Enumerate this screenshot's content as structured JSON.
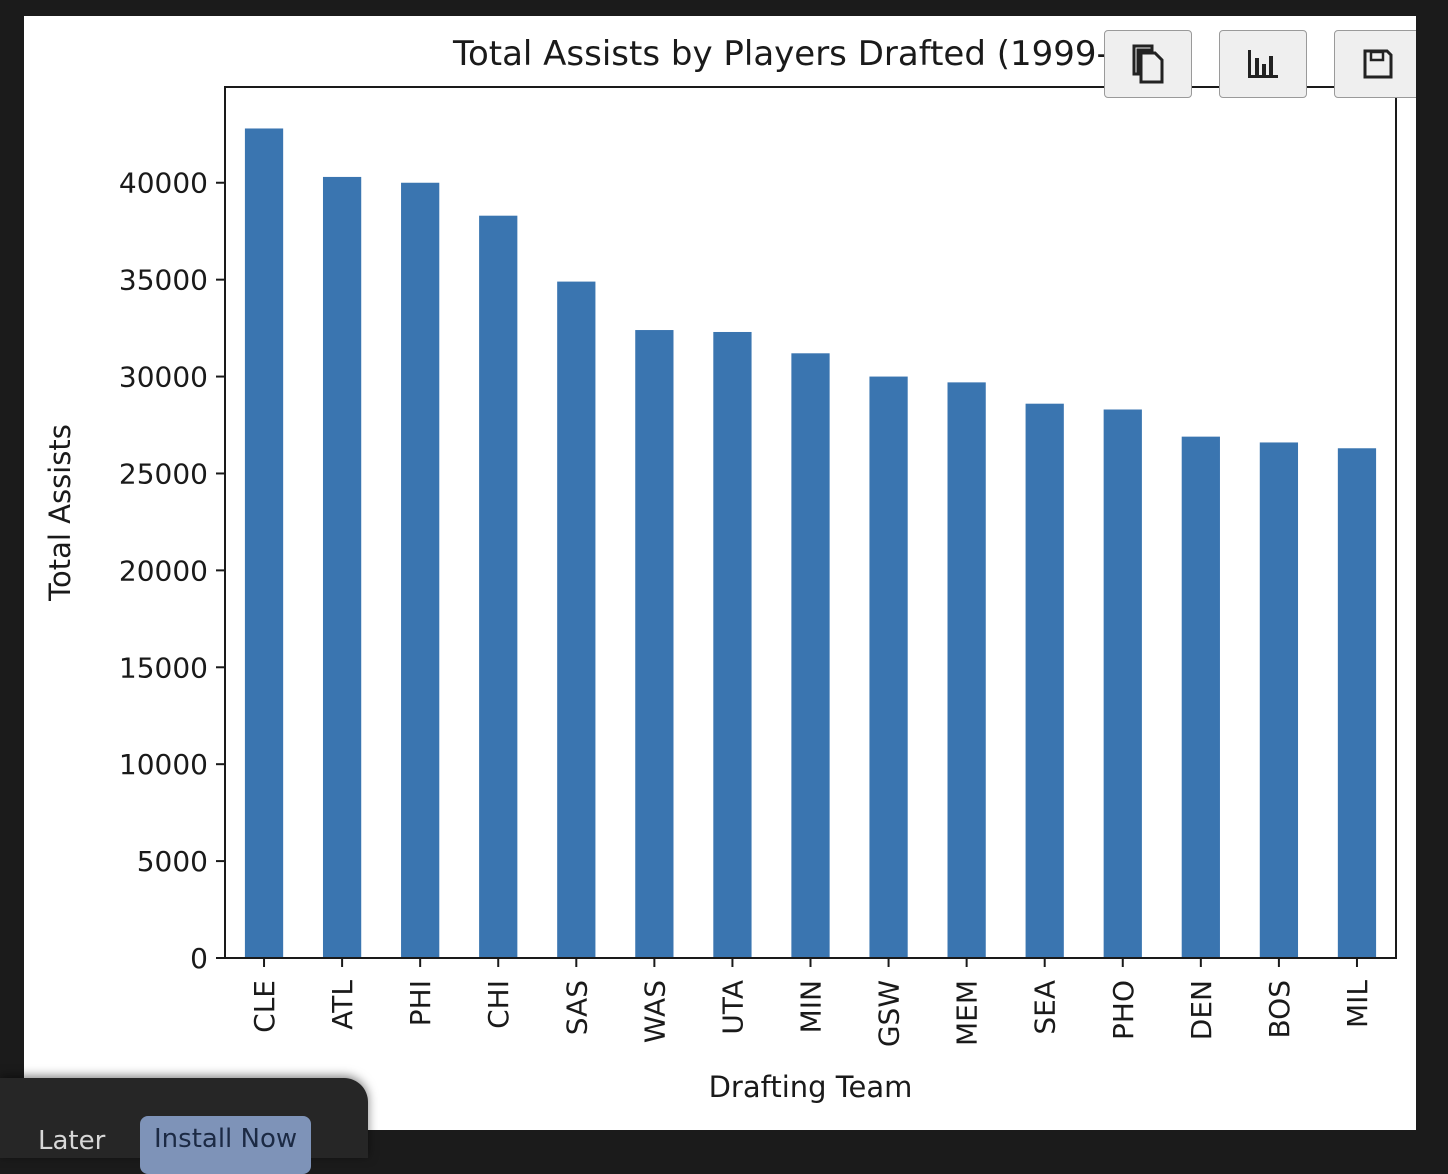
{
  "chart_data": {
    "type": "bar",
    "title": "Total Assists by Players Drafted (1999-20",
    "xlabel": "Drafting Team",
    "ylabel": "Total Assists",
    "categories": [
      "CLE",
      "ATL",
      "PHI",
      "CHI",
      "SAS",
      "WAS",
      "UTA",
      "MIN",
      "GSW",
      "MEM",
      "SEA",
      "PHO",
      "DEN",
      "BOS",
      "MIL"
    ],
    "values": [
      42800,
      40300,
      40000,
      38300,
      34900,
      32400,
      32300,
      31200,
      30000,
      29700,
      28600,
      28300,
      26900,
      26600,
      26300
    ],
    "yticks": [
      0,
      5000,
      10000,
      15000,
      20000,
      25000,
      30000,
      35000,
      40000
    ],
    "ylim": [
      0,
      44940
    ],
    "bar_color": "#3a75b0",
    "grid": false,
    "legend": "none"
  },
  "toolbar": {
    "copy_icon": "copy-icon",
    "chart_icon": "bar-chart-icon",
    "save_icon": "save-icon"
  },
  "toast": {
    "later_label": "Later",
    "install_label": "Install Now"
  }
}
